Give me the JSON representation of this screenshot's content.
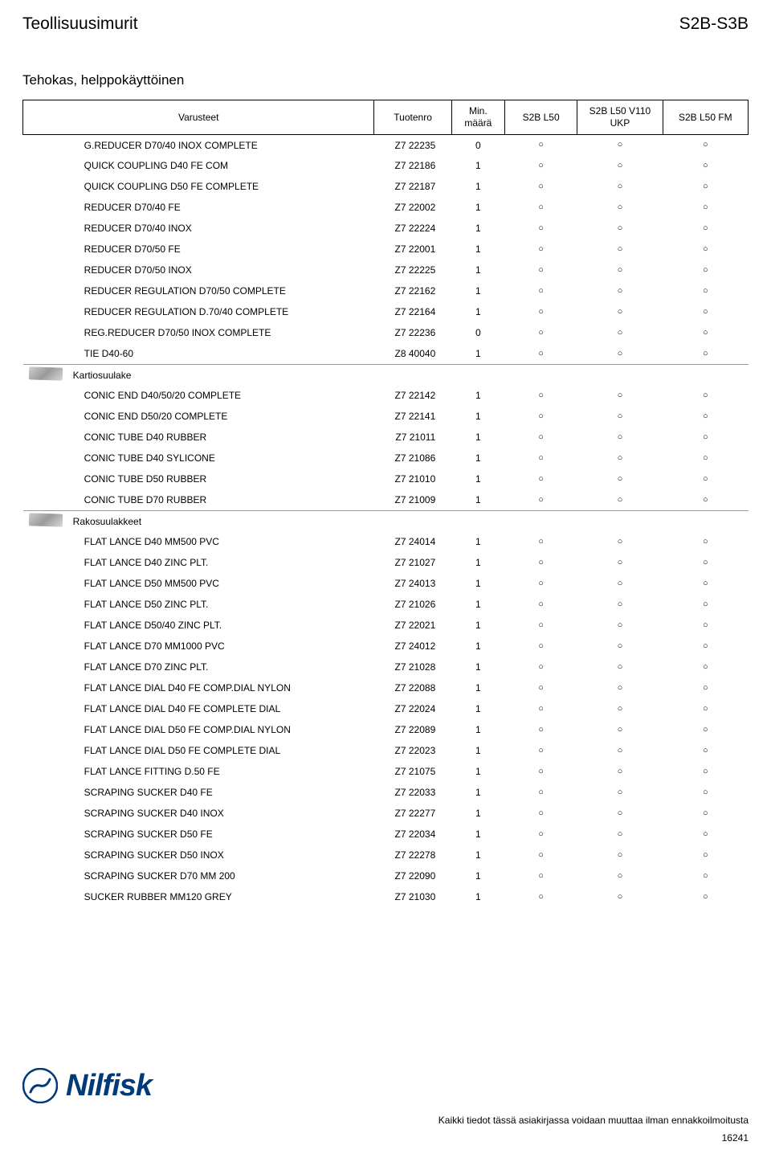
{
  "header": {
    "title_left": "Teollisuusimurit",
    "title_right": "S2B-S3B",
    "subtitle": "Tehokas, helppokäyttöinen"
  },
  "table": {
    "columns": {
      "name": "Varusteet",
      "prod": "Tuotenro",
      "min": "Min. määrä",
      "s1": "S2B L50",
      "s2": "S2B L50 V110 UKP",
      "s3": "S2B L50 FM"
    },
    "mark": "○",
    "groups": [
      {
        "label": null,
        "icon": false,
        "rows": [
          {
            "name": "G.REDUCER D70/40 INOX COMPLETE",
            "prod": "Z7 22235",
            "min": "0"
          },
          {
            "name": "QUICK COUPLING D40 FE COM",
            "prod": "Z7 22186",
            "min": "1"
          },
          {
            "name": "QUICK COUPLING D50 FE COMPLETE",
            "prod": "Z7 22187",
            "min": "1"
          },
          {
            "name": "REDUCER D70/40 FE",
            "prod": "Z7 22002",
            "min": "1"
          },
          {
            "name": "REDUCER D70/40 INOX",
            "prod": "Z7 22224",
            "min": "1"
          },
          {
            "name": "REDUCER D70/50 FE",
            "prod": "Z7 22001",
            "min": "1"
          },
          {
            "name": "REDUCER D70/50 INOX",
            "prod": "Z7 22225",
            "min": "1"
          },
          {
            "name": "REDUCER REGULATION D70/50 COMPLETE",
            "prod": "Z7 22162",
            "min": "1"
          },
          {
            "name": "REDUCER REGULATION D.70/40 COMPLETE",
            "prod": "Z7 22164",
            "min": "1"
          },
          {
            "name": "REG.REDUCER D70/50 INOX COMPLETE",
            "prod": "Z7 22236",
            "min": "0"
          },
          {
            "name": "TIE D40-60",
            "prod": "Z8 40040",
            "min": "1"
          }
        ]
      },
      {
        "label": "Kartiosuulake",
        "icon": true,
        "rows": [
          {
            "name": "CONIC END D40/50/20 COMPLETE",
            "prod": "Z7 22142",
            "min": "1"
          },
          {
            "name": "CONIC END D50/20 COMPLETE",
            "prod": "Z7 22141",
            "min": "1"
          },
          {
            "name": "CONIC TUBE D40 RUBBER",
            "prod": "Z7 21011",
            "min": "1"
          },
          {
            "name": "CONIC TUBE D40 SYLICONE",
            "prod": "Z7 21086",
            "min": "1"
          },
          {
            "name": "CONIC TUBE D50 RUBBER",
            "prod": "Z7 21010",
            "min": "1"
          },
          {
            "name": "CONIC TUBE D70 RUBBER",
            "prod": "Z7 21009",
            "min": "1"
          }
        ]
      },
      {
        "label": "Rakosuulakkeet",
        "icon": true,
        "rows": [
          {
            "name": "FLAT LANCE D40 MM500 PVC",
            "prod": "Z7 24014",
            "min": "1"
          },
          {
            "name": "FLAT LANCE D40 ZINC PLT.",
            "prod": "Z7 21027",
            "min": "1"
          },
          {
            "name": "FLAT LANCE D50 MM500 PVC",
            "prod": "Z7 24013",
            "min": "1"
          },
          {
            "name": "FLAT LANCE D50 ZINC PLT.",
            "prod": "Z7 21026",
            "min": "1"
          },
          {
            "name": "FLAT LANCE D50/40 ZINC PLT.",
            "prod": "Z7 22021",
            "min": "1"
          },
          {
            "name": "FLAT LANCE D70 MM1000 PVC",
            "prod": "Z7 24012",
            "min": "1"
          },
          {
            "name": "FLAT LANCE D70 ZINC PLT.",
            "prod": "Z7 21028",
            "min": "1"
          },
          {
            "name": "FLAT LANCE DIAL D40 FE COMP.DIAL NYLON",
            "prod": "Z7 22088",
            "min": "1"
          },
          {
            "name": "FLAT LANCE DIAL D40 FE COMPLETE DIAL",
            "prod": "Z7 22024",
            "min": "1"
          },
          {
            "name": "FLAT LANCE DIAL D50 FE COMP.DIAL NYLON",
            "prod": "Z7 22089",
            "min": "1"
          },
          {
            "name": "FLAT LANCE DIAL D50 FE COMPLETE DIAL",
            "prod": "Z7 22023",
            "min": "1"
          },
          {
            "name": "FLAT LANCE FITTING D.50 FE",
            "prod": "Z7 21075",
            "min": "1"
          },
          {
            "name": "SCRAPING SUCKER D40 FE",
            "prod": "Z7 22033",
            "min": "1"
          },
          {
            "name": "SCRAPING SUCKER D40 INOX",
            "prod": "Z7 22277",
            "min": "1"
          },
          {
            "name": "SCRAPING SUCKER D50 FE",
            "prod": "Z7 22034",
            "min": "1"
          },
          {
            "name": "SCRAPING SUCKER D50 INOX",
            "prod": "Z7 22278",
            "min": "1"
          },
          {
            "name": "SCRAPING SUCKER D70 MM 200",
            "prod": "Z7 22090",
            "min": "1"
          },
          {
            "name": "SUCKER RUBBER MM120 GREY",
            "prod": "Z7 21030",
            "min": "1"
          }
        ]
      }
    ]
  },
  "footer": {
    "logo_text": "Nilfisk",
    "note": "Kaikki tiedot tässä asiakirjassa voidaan muuttaa ilman ennakkoilmoitusta",
    "page": "16241"
  },
  "style": {
    "text_color": "#000000",
    "border_color": "#000000",
    "sep_color": "#999999",
    "logo_color": "#003a78",
    "background": "#ffffff",
    "title_fontsize": 21,
    "th_fontsize": 12,
    "td_fontsize": 12,
    "footer_fontsize": 12
  }
}
